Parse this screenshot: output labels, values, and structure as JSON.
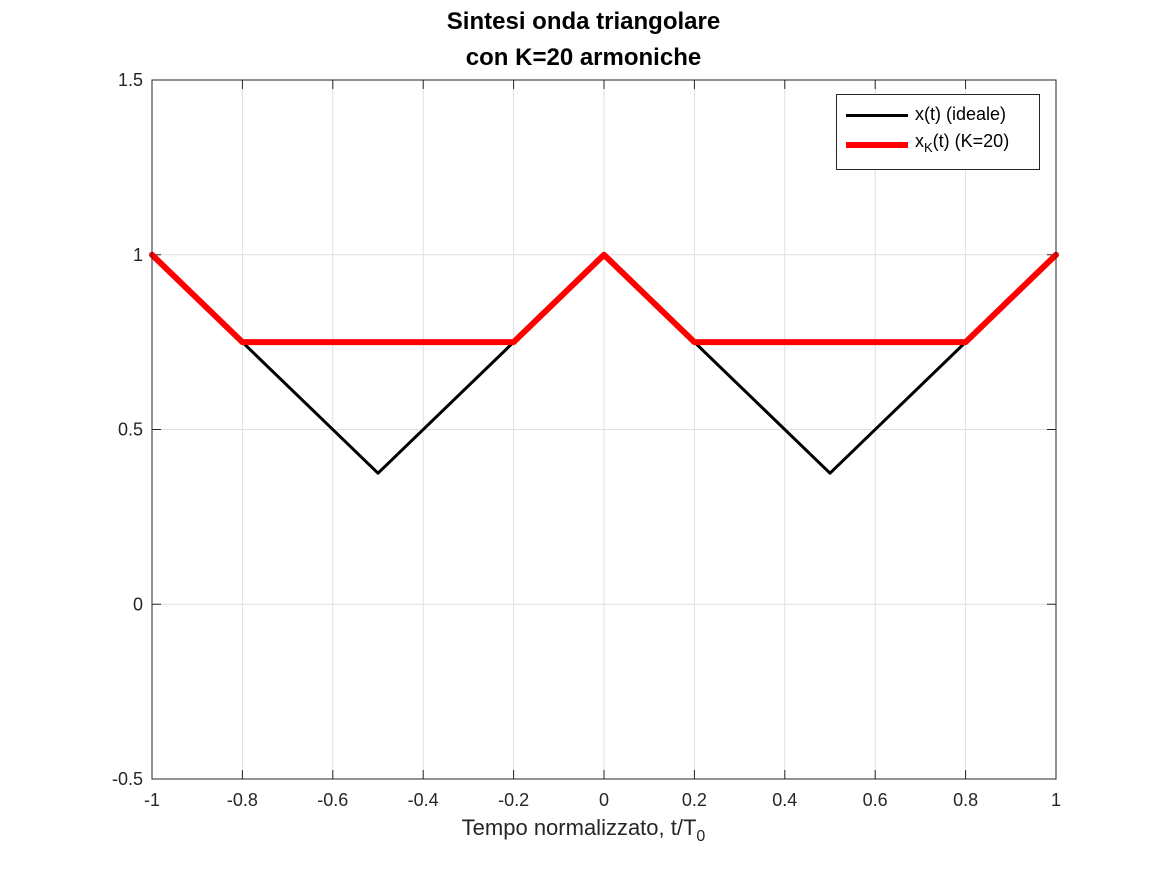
{
  "chart_data": {
    "type": "line",
    "title_line1": "Sintesi onda triangolare",
    "title_line2": "con K=20 armoniche",
    "xlabel_main": "Tempo normalizzato, t/T",
    "xlabel_sub": "0",
    "ylabel": "",
    "xlim": [
      -1,
      1
    ],
    "ylim": [
      -0.5,
      1.5
    ],
    "xticks": [
      -1,
      -0.8,
      -0.6,
      -0.4,
      -0.2,
      0,
      0.2,
      0.4,
      0.6,
      0.8,
      1
    ],
    "xtick_labels": [
      "-1",
      "-0.8",
      "-0.6",
      "-0.4",
      "-0.2",
      "0",
      "0.2",
      "0.4",
      "0.6",
      "0.8",
      "1"
    ],
    "yticks": [
      -0.5,
      0,
      0.5,
      1,
      1.5
    ],
    "ytick_labels": [
      "-0.5",
      "0",
      "0.5",
      "1",
      "1.5"
    ],
    "grid": true,
    "legend_position": "top-right",
    "series": [
      {
        "name": "x(t) (ideale)",
        "color": "#000000",
        "x": [
          -1,
          -0.5,
          0,
          0.5,
          1
        ],
        "y": [
          1,
          0.375,
          1,
          0.375,
          1
        ]
      },
      {
        "name": "x_K(t) (K=20)",
        "color": "#ff0000",
        "x": [
          -1,
          -0.8,
          -0.2,
          0,
          0.2,
          0.8,
          1
        ],
        "y": [
          1,
          0.75,
          0.75,
          1,
          0.75,
          0.75,
          1
        ]
      }
    ],
    "legend": {
      "entry1": "x(t) (ideale)",
      "entry2_main": "x",
      "entry2_sub": "K",
      "entry2_rest": "(t) (K=20)"
    }
  }
}
